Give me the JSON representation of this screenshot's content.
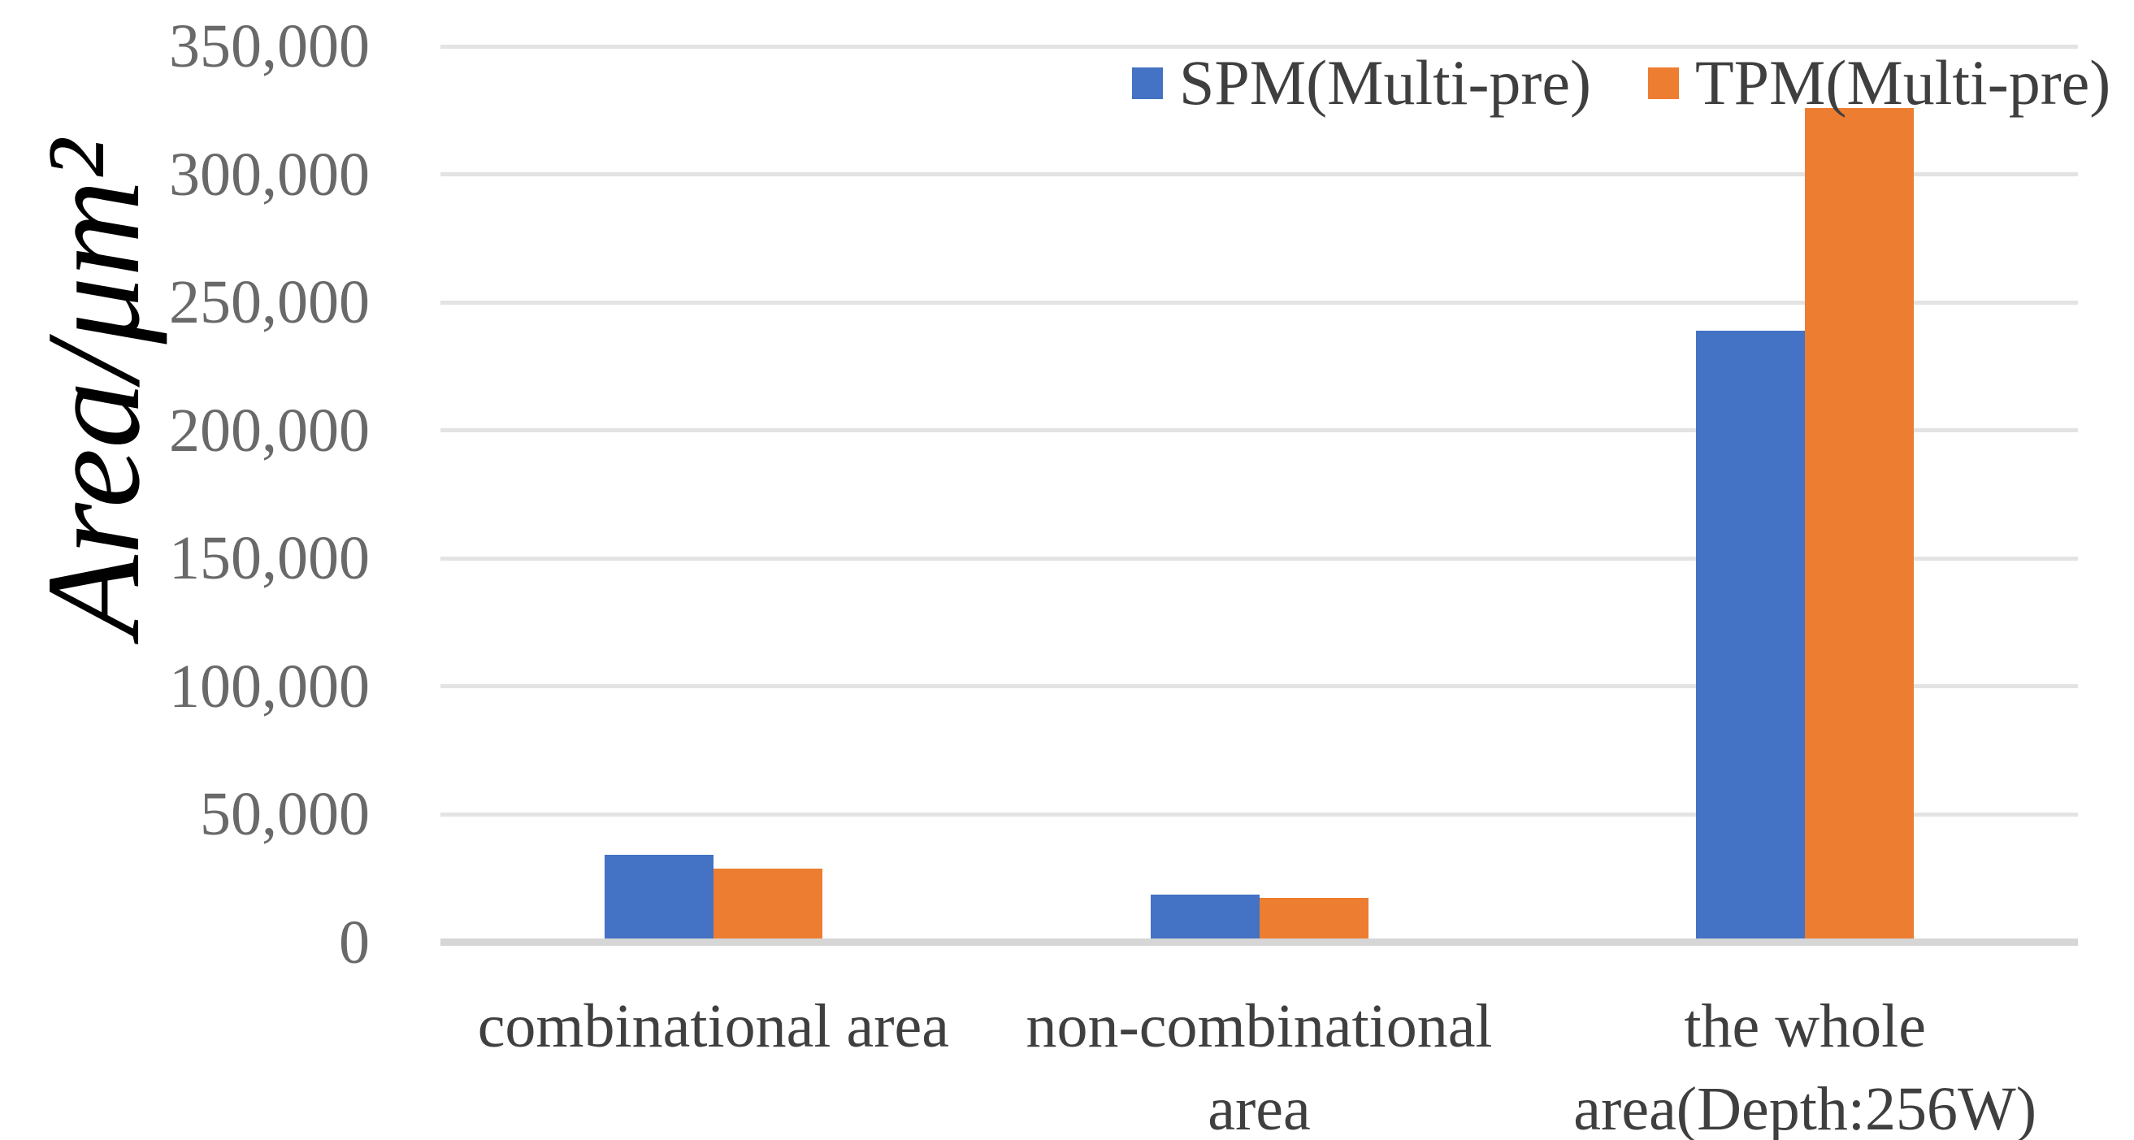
{
  "chart_data": {
    "type": "bar",
    "title": "",
    "ylabel": "Area/μm²",
    "xlabel": "",
    "categories": [
      "combinational area",
      "non-combinational area",
      "the whole area(Depth:256W)"
    ],
    "category_label_lines": [
      [
        "combinational area"
      ],
      [
        "non-combinational",
        "area"
      ],
      [
        "the whole",
        "area(Depth:256W)"
      ]
    ],
    "series": [
      {
        "name": "SPM(Multi-pre)",
        "color": "#4472C4",
        "values": [
          34000,
          18700,
          239000
        ]
      },
      {
        "name": "TPM(Multi-pre)",
        "color": "#ED7D31",
        "values": [
          28600,
          17300,
          326000
        ]
      }
    ],
    "ylim": [
      0,
      350000
    ],
    "ytick_step": 50000,
    "ytick_labels": [
      "0",
      "50,000",
      "100,000",
      "150,000",
      "200,000",
      "250,000",
      "300,000",
      "350,000"
    ],
    "grid": true,
    "legend_position": "top-right",
    "colors": {
      "gridline": "#E3E3E3",
      "axis_line": "#D6D6D6",
      "tick_text": "#696969",
      "category_text": "#3F3F3F",
      "legend_text": "#3F3F3F",
      "ylabel_text": "#000000",
      "background": "#FFFFFF"
    }
  }
}
